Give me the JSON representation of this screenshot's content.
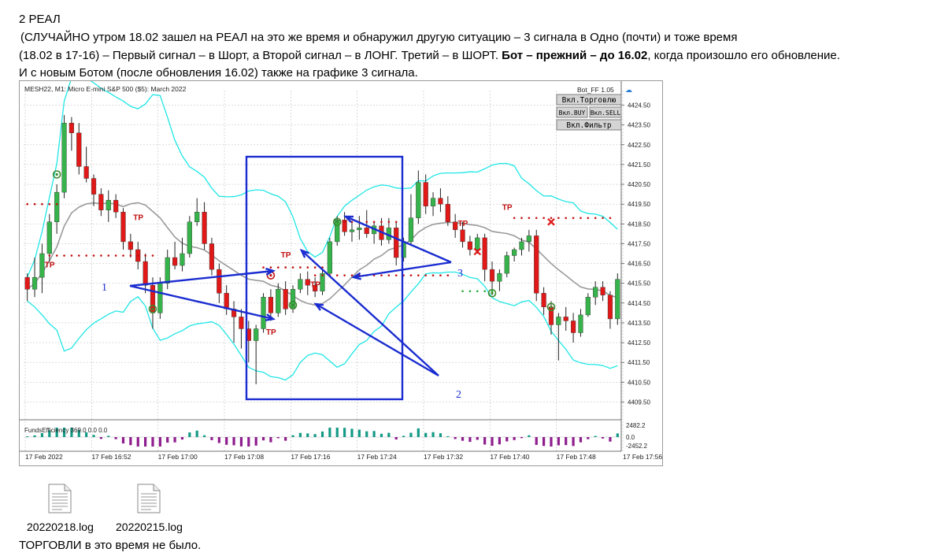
{
  "text": {
    "heading": "2  РЕАЛ",
    "line2": " (СЛУЧАЙНО  утром 18.02 зашел на РЕАЛ на это же время и обнаружил другую ситуацию   – 3 сигнала в Одно  (почти) и тоже время",
    "line3_a": "(18.02 в 17-16)   – Первый сигнал – в Шорт, а Второй сигнал – в ЛОНГ. Третий – в ШОРТ. ",
    "line3_b": "Бот – прежний – до 16.02",
    "line3_c": ", когда произошло его обновление.",
    "line4": "И с новым Ботом (после обновления 16.02) также на графике 3 сигнала.",
    "footer": "ТОРГОВЛИ в это время не было."
  },
  "files": [
    {
      "name": "20220218.log",
      "icon": "log-file-icon"
    },
    {
      "name": "20220215.log",
      "icon": "log-file-icon"
    }
  ],
  "chart_panel": {
    "symbol_header": "MESH22, M1:  Micro E-mini S&P 500 ($5): March 2022",
    "bot_label": "Bot_FF 1.05",
    "buttons": {
      "trade": "Вкл.Торговлю",
      "buy": "Вкл.BUY",
      "sell": "Вкл.SELL",
      "filter": "Вкл.Фильтр"
    },
    "indicator_label": "FundsEfficiency 369.0 0.0 0.0",
    "indicator_ticks": [
      "2482.2",
      "0.0",
      "-2452.2"
    ],
    "marker_text": "TP",
    "annotations": [
      "1",
      "2",
      "3"
    ]
  },
  "chart_data": {
    "type": "candlestick",
    "title": "MESH22, M1:  Micro E-mini S&P 500 ($5): March 2022",
    "x_labels": [
      "17 Feb 2022",
      "17 Feb 16:52",
      "17 Feb 17:00",
      "17 Feb 17:08",
      "17 Feb 17:16",
      "17 Feb 17:24",
      "17 Feb 17:32",
      "17 Feb 17:40",
      "17 Feb 17:48",
      "17 Feb 17:56"
    ],
    "y_ticks": [
      4424.5,
      4423.5,
      4422.5,
      4421.5,
      4420.5,
      4419.5,
      4418.5,
      4417.5,
      4416.5,
      4415.5,
      4414.5,
      4413.5,
      4412.5,
      4411.5,
      4410.5,
      4409.5
    ],
    "ylim": [
      4409.0,
      4425.0
    ],
    "candles": [
      [
        4415.8,
        4416.0,
        4414.6,
        4415.2
      ],
      [
        4415.2,
        4416.8,
        4414.8,
        4415.8
      ],
      [
        4415.8,
        4417.5,
        4415.0,
        4417.0
      ],
      [
        4417.0,
        4419.0,
        4416.6,
        4418.6
      ],
      [
        4418.6,
        4420.5,
        4418.0,
        4420.1
      ],
      [
        4420.1,
        4424.0,
        4419.8,
        4423.6
      ],
      [
        4423.6,
        4423.9,
        4422.2,
        4423.1
      ],
      [
        4423.1,
        4423.6,
        4421.0,
        4421.4
      ],
      [
        4421.4,
        4422.4,
        4420.6,
        4420.8
      ],
      [
        4420.8,
        4421.0,
        4419.4,
        4420.0
      ],
      [
        4420.0,
        4420.3,
        4418.9,
        4419.2
      ],
      [
        4419.2,
        4420.2,
        4418.6,
        4419.7
      ],
      [
        4419.7,
        4420.0,
        4418.8,
        4419.1
      ],
      [
        4419.1,
        4419.3,
        4417.2,
        4417.6
      ],
      [
        4417.6,
        4418.0,
        4416.8,
        4417.2
      ],
      [
        4417.2,
        4417.6,
        4416.2,
        4416.6
      ],
      [
        4416.6,
        4417.0,
        4415.0,
        4415.4
      ],
      [
        4415.4,
        4415.8,
        4413.2,
        4414.0
      ],
      [
        4414.0,
        4415.8,
        4413.7,
        4415.5
      ],
      [
        4415.5,
        4417.2,
        4415.2,
        4416.8
      ],
      [
        4416.8,
        4417.6,
        4416.2,
        4416.4
      ],
      [
        4416.4,
        4417.8,
        4416.1,
        4417.0
      ],
      [
        4417.0,
        4418.9,
        4416.8,
        4418.6
      ],
      [
        4418.6,
        4419.8,
        4418.4,
        4419.1
      ],
      [
        4419.1,
        4419.6,
        4417.2,
        4417.5
      ],
      [
        4417.5,
        4417.8,
        4415.9,
        4416.2
      ],
      [
        4416.2,
        4416.5,
        4414.5,
        4415.0
      ],
      [
        4415.0,
        4415.4,
        4413.9,
        4414.2
      ],
      [
        4414.2,
        4414.6,
        4412.5,
        4413.8
      ],
      [
        4413.8,
        4414.2,
        4412.2,
        4413.2
      ],
      [
        4413.2,
        4413.6,
        4411.5,
        4412.6
      ],
      [
        4412.6,
        4413.4,
        4410.4,
        4413.2
      ],
      [
        4413.2,
        4415.0,
        4413.0,
        4414.8
      ],
      [
        4414.8,
        4415.2,
        4413.6,
        4414.0
      ],
      [
        4414.0,
        4415.5,
        4413.8,
        4415.2
      ],
      [
        4415.2,
        4415.6,
        4413.9,
        4414.2
      ],
      [
        4414.2,
        4415.4,
        4414.0,
        4415.2
      ],
      [
        4415.2,
        4416.0,
        4415.0,
        4415.7
      ],
      [
        4415.7,
        4416.1,
        4414.9,
        4415.4
      ],
      [
        4415.4,
        4415.8,
        4414.8,
        4415.1
      ],
      [
        4415.1,
        4416.2,
        4414.9,
        4416.0
      ],
      [
        4416.0,
        4417.8,
        4415.9,
        4417.6
      ],
      [
        4417.6,
        4418.9,
        4417.4,
        4418.7
      ],
      [
        4418.7,
        4419.1,
        4417.9,
        4418.1
      ],
      [
        4418.1,
        4418.6,
        4417.6,
        4418.2
      ],
      [
        4418.2,
        4418.9,
        4417.7,
        4418.3
      ],
      [
        4418.3,
        4419.2,
        4417.8,
        4418.0
      ],
      [
        4418.0,
        4418.6,
        4417.5,
        4418.4
      ],
      [
        4418.4,
        4418.8,
        4417.4,
        4417.7
      ],
      [
        4417.7,
        4418.8,
        4417.5,
        4418.3
      ],
      [
        4418.3,
        4418.6,
        4416.4,
        4416.8
      ],
      [
        4416.8,
        4417.8,
        4416.6,
        4417.6
      ],
      [
        4417.6,
        4420.0,
        4417.4,
        4418.8
      ],
      [
        4418.8,
        4421.2,
        4418.5,
        4420.6
      ],
      [
        4420.6,
        4421.0,
        4419.0,
        4419.4
      ],
      [
        4419.4,
        4420.1,
        4418.9,
        4419.8
      ],
      [
        4419.8,
        4420.3,
        4419.1,
        4419.5
      ],
      [
        4419.5,
        4419.9,
        4418.4,
        4418.6
      ],
      [
        4418.6,
        4419.0,
        4417.8,
        4418.2
      ],
      [
        4418.2,
        4418.6,
        4417.3,
        4417.6
      ],
      [
        4417.6,
        4417.9,
        4416.9,
        4417.2
      ],
      [
        4417.2,
        4418.0,
        4417.0,
        4417.8
      ],
      [
        4417.8,
        4418.0,
        4415.6,
        4416.2
      ],
      [
        4416.2,
        4416.6,
        4414.9,
        4415.6
      ],
      [
        4415.6,
        4416.2,
        4415.1,
        4416.0
      ],
      [
        4416.0,
        4417.1,
        4415.8,
        4416.9
      ],
      [
        4416.9,
        4417.3,
        4416.6,
        4417.2
      ],
      [
        4417.2,
        4417.8,
        4416.9,
        4417.6
      ],
      [
        4417.6,
        4418.2,
        4417.1,
        4417.9
      ],
      [
        4417.9,
        4418.2,
        4414.6,
        4415.0
      ],
      [
        4415.0,
        4415.3,
        4413.9,
        4414.3
      ],
      [
        4414.3,
        4414.6,
        4412.9,
        4413.4
      ],
      [
        4413.4,
        4414.0,
        4411.6,
        4413.8
      ],
      [
        4413.8,
        4414.3,
        4413.1,
        4413.6
      ],
      [
        4413.6,
        4414.0,
        4412.5,
        4413.0
      ],
      [
        4413.0,
        4414.2,
        4412.8,
        4413.9
      ],
      [
        4413.9,
        4415.0,
        4413.8,
        4414.8
      ],
      [
        4414.8,
        4415.6,
        4414.4,
        4415.3
      ],
      [
        4415.3,
        4415.6,
        4414.6,
        4414.9
      ],
      [
        4414.9,
        4415.1,
        4413.2,
        4413.7
      ],
      [
        4413.7,
        4416.0,
        4413.4,
        4415.7
      ]
    ]
  },
  "colors": {
    "bull": "#36b34a",
    "bear": "#e01818",
    "band": "#1fe6e6",
    "ma": "#9a9a9a",
    "annotation": "#1a2cd0",
    "grid": "#c9c9c9",
    "osc_pos": "#159a86",
    "osc_neg": "#8e1d8e"
  }
}
